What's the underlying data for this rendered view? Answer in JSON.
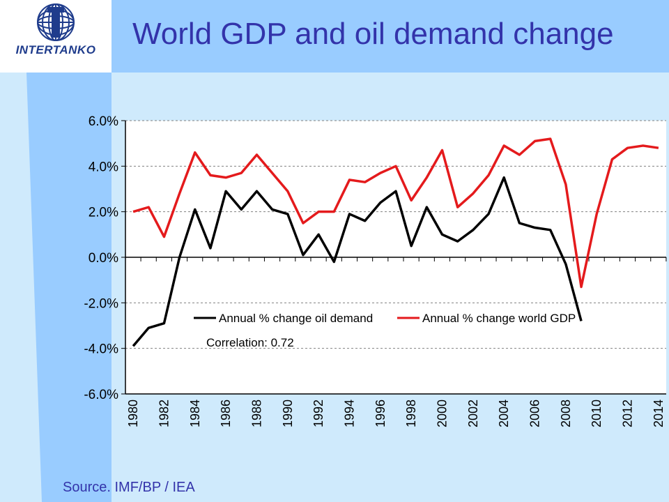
{
  "header": {
    "title": "World GDP and oil demand change",
    "logo_text": "INTERTANKO"
  },
  "footer": {
    "source": "Source. IMF/BP / IEA"
  },
  "colors": {
    "header_bg": "#99ccff",
    "page_bg": "#cfeafc",
    "band": "#99ccff",
    "oil": "#000000",
    "gdp": "#e41a1c",
    "title": "#3333aa"
  },
  "chart_data": {
    "type": "line",
    "title": "",
    "xlabel": "",
    "ylabel": "",
    "ylim": [
      -6.0,
      6.0
    ],
    "yticks": [
      "6.0%",
      "4.0%",
      "2.0%",
      "0.0%",
      "-2.0%",
      "-4.0%",
      "-6.0%"
    ],
    "ytick_values": [
      6,
      4,
      2,
      0,
      -2,
      -4,
      -6
    ],
    "xticks": [
      "1980",
      "1982",
      "1984",
      "1986",
      "1988",
      "1990",
      "1992",
      "1994",
      "1996",
      "1998",
      "2000",
      "2002",
      "2004",
      "2006",
      "2008",
      "2010",
      "2012",
      "2014"
    ],
    "grid": "horizontal dashed",
    "legend": "inside-center",
    "annotation": "Correlation: 0.72",
    "series": [
      {
        "name": "Annual % change oil demand",
        "x": [
          1980,
          1981,
          1982,
          1983,
          1984,
          1985,
          1986,
          1987,
          1988,
          1989,
          1990,
          1991,
          1992,
          1993,
          1994,
          1995,
          1996,
          1997,
          1998,
          1999,
          2000,
          2001,
          2002,
          2003,
          2004,
          2005,
          2006,
          2007,
          2008,
          2009
        ],
        "values": [
          -3.9,
          -3.1,
          -2.9,
          0.0,
          2.1,
          0.4,
          2.9,
          2.1,
          2.9,
          2.1,
          1.9,
          0.1,
          1.0,
          -0.2,
          1.9,
          1.6,
          2.4,
          2.9,
          0.5,
          2.2,
          1.0,
          0.7,
          1.2,
          1.9,
          3.5,
          1.5,
          1.3,
          1.2,
          -0.3,
          -2.8
        ]
      },
      {
        "name": "Annual % change world GDP",
        "x": [
          1980,
          1981,
          1982,
          1983,
          1984,
          1985,
          1986,
          1987,
          1988,
          1989,
          1990,
          1991,
          1992,
          1993,
          1994,
          1995,
          1996,
          1997,
          1998,
          1999,
          2000,
          2001,
          2002,
          2003,
          2004,
          2005,
          2006,
          2007,
          2008,
          2009,
          2010,
          2011,
          2012,
          2013,
          2014
        ],
        "values": [
          2.0,
          2.2,
          0.9,
          2.8,
          4.6,
          3.6,
          3.5,
          3.7,
          4.5,
          3.7,
          2.9,
          1.5,
          2.0,
          2.0,
          3.4,
          3.3,
          3.7,
          4.0,
          2.5,
          3.5,
          4.7,
          2.2,
          2.8,
          3.6,
          4.9,
          4.5,
          5.1,
          5.2,
          3.2,
          -1.3,
          1.9,
          4.3,
          4.8,
          4.9,
          4.8
        ]
      }
    ]
  }
}
